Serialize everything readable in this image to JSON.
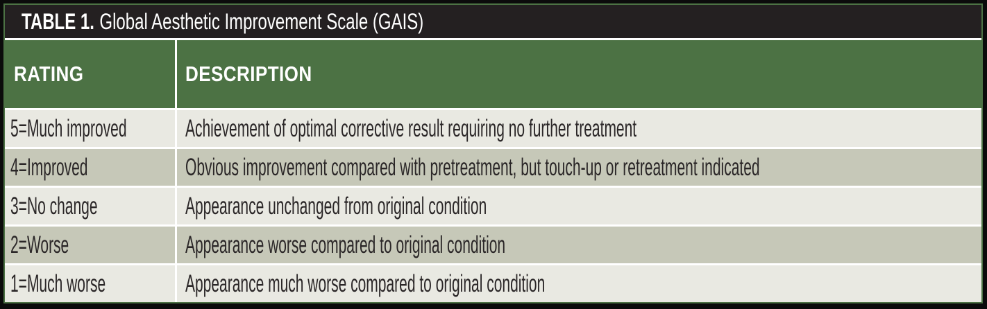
{
  "table": {
    "title_label": "TABLE 1.",
    "title_caption": "Global Aesthetic Improvement Scale (GAIS)",
    "columns": [
      {
        "label": "RATING"
      },
      {
        "label": "DESCRIPTION"
      }
    ],
    "rows": [
      {
        "rating": "5=Much improved",
        "description": "Achievement of optimal corrective result requiring no further treatment"
      },
      {
        "rating": "4=Improved",
        "description": "Obvious improvement compared with pretreatment, but touch-up or retreatment indicated"
      },
      {
        "rating": "3=No change",
        "description": "Appearance unchanged from original condition"
      },
      {
        "rating": "2=Worse",
        "description": "Appearance worse compared to original condition"
      },
      {
        "rating": "1=Much worse",
        "description": "Appearance much worse compared to original condition"
      }
    ],
    "colors": {
      "frame_black": "#0b0b0b",
      "frame_green": "#4c7244",
      "title_bar_bg": "#242021",
      "header_bg": "#4c7244",
      "row_light_bg": "#e9e9e2",
      "row_dark_bg": "#c6c8b8",
      "text_dark": "#2a2627",
      "text_white": "#ffffff"
    }
  }
}
